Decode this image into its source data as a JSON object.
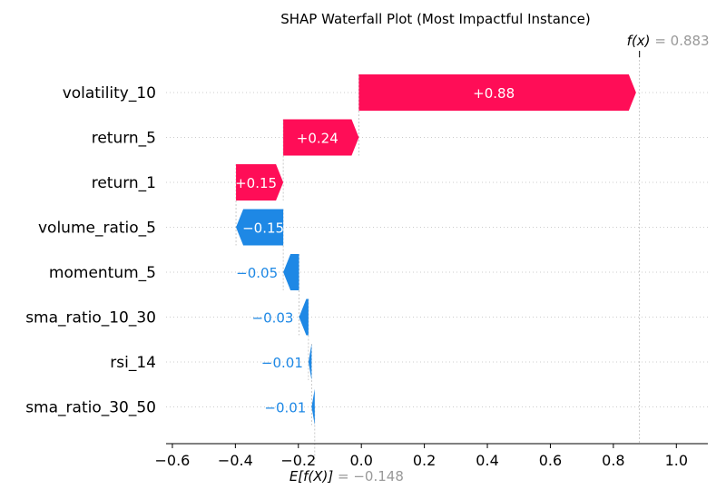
{
  "chart_data": {
    "type": "waterfall",
    "title": "SHAP Waterfall Plot (Most Impactful Instance)",
    "base_value": -0.148,
    "base_label_prefix": "E[f(X)]",
    "base_label_value": "= −0.148",
    "output_value": 0.883,
    "output_label_prefix": "f(x)",
    "output_label_value": "= 0.883",
    "features": [
      {
        "name": "volatility_10",
        "value": 0.88,
        "label": "+0.88"
      },
      {
        "name": "return_5",
        "value": 0.24,
        "label": "+0.24"
      },
      {
        "name": "return_1",
        "value": 0.15,
        "label": "+0.15"
      },
      {
        "name": "volume_ratio_5",
        "value": -0.15,
        "label": "−0.15"
      },
      {
        "name": "momentum_5",
        "value": -0.05,
        "label": "−0.05"
      },
      {
        "name": "sma_ratio_10_30",
        "value": -0.03,
        "label": "−0.03"
      },
      {
        "name": "rsi_14",
        "value": -0.01,
        "label": "−0.01"
      },
      {
        "name": "sma_ratio_30_50",
        "value": -0.01,
        "label": "−0.01"
      }
    ],
    "x_ticks": [
      -0.6,
      -0.4,
      -0.2,
      0.0,
      0.2,
      0.4,
      0.6,
      0.8,
      1.0
    ],
    "x_tick_labels": [
      "−0.6",
      "−0.4",
      "−0.2",
      "0.0",
      "0.2",
      "0.4",
      "0.6",
      "0.8",
      "1.0"
    ],
    "xlim": [
      -0.62,
      1.1
    ],
    "positive_color": "#ff0d57",
    "negative_color": "#1e88e5",
    "grid": "dotted-horizontal"
  }
}
